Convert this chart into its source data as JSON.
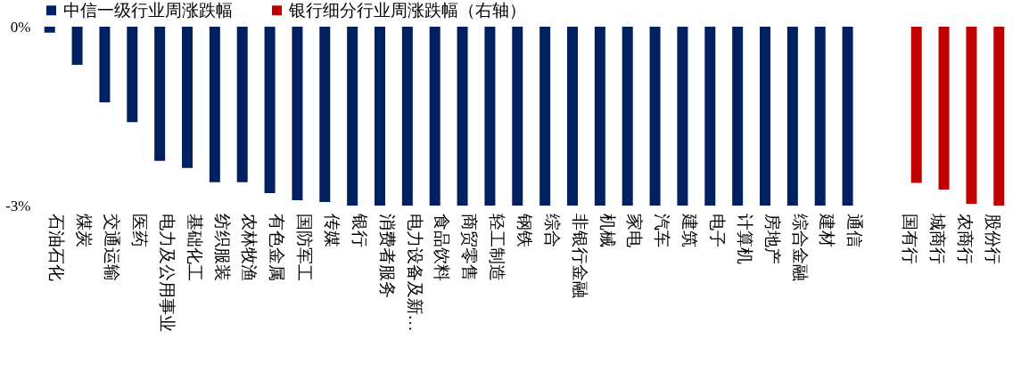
{
  "chart_data": {
    "type": "bar",
    "categories": [
      "石油石化",
      "煤炭",
      "交通运输",
      "医药",
      "电力及公用事业",
      "基础化工",
      "纺织服装",
      "农林牧渔",
      "有色金属",
      "国防军工",
      "传媒",
      "银行",
      "消费者服务",
      "电力设备及新…",
      "食品饮料",
      "商贸零售",
      "轻工制造",
      "钢铁",
      "综合",
      "非银行金融",
      "机械",
      "家电",
      "汽车",
      "建筑",
      "电子",
      "计算机",
      "房地产",
      "综合金融",
      "建材",
      "通信",
      null,
      "国有行",
      "城商行",
      "农商行",
      "股份行"
    ],
    "series": [
      {
        "name": "中信一级行业周涨跌幅",
        "color": "#002060",
        "values": [
          -0.1,
          -0.64,
          -1.27,
          -1.6,
          -2.25,
          -2.37,
          -2.61,
          -2.61,
          -2.79,
          -2.91,
          -2.94,
          -3,
          -3,
          -3,
          -3,
          -3,
          -3,
          -3,
          -3,
          -3,
          -3,
          -3,
          -3,
          -3,
          -3,
          -3,
          -3,
          -3,
          -3,
          -3,
          null,
          null,
          null,
          null,
          null
        ]
      },
      {
        "name": "银行细分行业周涨跌幅（右轴）",
        "color": "#c00000",
        "values": [
          null,
          null,
          null,
          null,
          null,
          null,
          null,
          null,
          null,
          null,
          null,
          null,
          null,
          null,
          null,
          null,
          null,
          null,
          null,
          null,
          null,
          null,
          null,
          null,
          null,
          null,
          null,
          null,
          null,
          null,
          null,
          -2.62,
          -2.73,
          -2.97,
          -3
        ]
      }
    ],
    "ylim": [
      -3,
      0
    ],
    "yticks": [
      {
        "value": 0,
        "label": "0%"
      },
      {
        "value": -3,
        "label": "-3%"
      }
    ],
    "legend": "top"
  }
}
